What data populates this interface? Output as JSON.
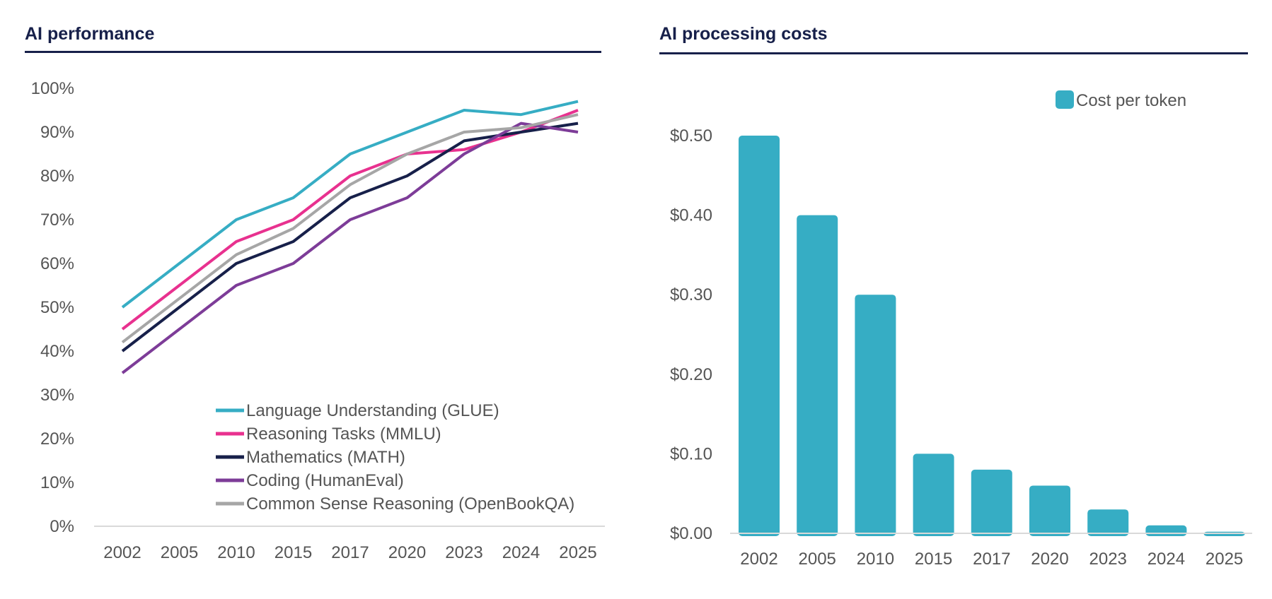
{
  "chart_data": [
    {
      "type": "line",
      "title": "AI performance",
      "categories": [
        "2002",
        "2005",
        "2010",
        "2015",
        "2017",
        "2020",
        "2023",
        "2024",
        "2025"
      ],
      "y_ticks": [
        "0%",
        "10%",
        "20%",
        "30%",
        "40%",
        "50%",
        "60%",
        "70%",
        "80%",
        "90%",
        "100%"
      ],
      "ylim": [
        0,
        100
      ],
      "xlabel": "",
      "ylabel": "",
      "legend_position": "bottom-right",
      "series": [
        {
          "name": "Language Understanding (GLUE)",
          "color": "#36adc4",
          "values": [
            50,
            60,
            70,
            75,
            85,
            90,
            95,
            94,
            97
          ]
        },
        {
          "name": "Reasoning Tasks (MMLU)",
          "color": "#e8318f",
          "values": [
            45,
            55,
            65,
            70,
            80,
            85,
            86,
            90,
            95
          ]
        },
        {
          "name": "Mathematics (MATH)",
          "color": "#17204a",
          "values": [
            40,
            50,
            60,
            65,
            75,
            80,
            88,
            90,
            92
          ]
        },
        {
          "name": "Coding (HumanEval)",
          "color": "#7d3c98",
          "values": [
            35,
            45,
            55,
            60,
            70,
            75,
            85,
            92,
            90
          ]
        },
        {
          "name": "Common Sense Reasoning (OpenBookQA)",
          "color": "#a6a6a6",
          "values": [
            42,
            52,
            62,
            68,
            78,
            85,
            90,
            91,
            94
          ]
        }
      ]
    },
    {
      "type": "bar",
      "title": "AI processing costs",
      "categories": [
        "2002",
        "2005",
        "2010",
        "2015",
        "2017",
        "2020",
        "2023",
        "2024",
        "2025"
      ],
      "y_ticks": [
        "$0.00",
        "$0.10",
        "$0.20",
        "$0.30",
        "$0.40",
        "$0.50"
      ],
      "ylim": [
        0,
        0.5
      ],
      "xlabel": "",
      "ylabel": "",
      "legend_position": "top-right",
      "series": [
        {
          "name": "Cost per token",
          "color": "#36adc4",
          "values": [
            0.5,
            0.4,
            0.3,
            0.1,
            0.08,
            0.06,
            0.03,
            0.01,
            0.002
          ]
        }
      ]
    }
  ]
}
